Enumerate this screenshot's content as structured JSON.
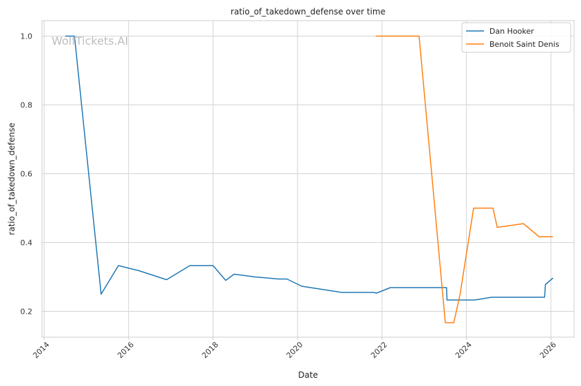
{
  "chart_data": {
    "type": "line",
    "title": "ratio_of_takedown_defense over time",
    "xlabel": "Date",
    "ylabel": "ratio_of_takedown_defense",
    "watermark": "WolfTickets.AI",
    "xlim": [
      2013.95,
      2026.55
    ],
    "ylim": [
      0.125,
      1.045
    ],
    "x_ticks": [
      2014,
      2016,
      2018,
      2020,
      2022,
      2024,
      2026
    ],
    "x_tick_labels": [
      "2014",
      "2016",
      "2018",
      "2020",
      "2022",
      "2024",
      "2026"
    ],
    "y_ticks": [
      0.2,
      0.4,
      0.6,
      0.8,
      1.0
    ],
    "y_tick_labels": [
      "0.2",
      "0.4",
      "0.6",
      "0.8",
      "1.0"
    ],
    "grid": true,
    "legend_position": "top-right",
    "series": [
      {
        "name": "Dan Hooker",
        "color": "#1f77b4",
        "x": [
          2014.5,
          2014.72,
          2015.35,
          2015.76,
          2016.25,
          2016.9,
          2017.45,
          2018.0,
          2018.3,
          2018.5,
          2019.0,
          2019.55,
          2019.75,
          2020.1,
          2021.05,
          2021.8,
          2021.87,
          2022.2,
          2023.53,
          2023.54,
          2023.85,
          2024.2,
          2024.6,
          2025.0,
          2025.3,
          2025.85,
          2025.87,
          2026.05
        ],
        "y": [
          1.0,
          1.0,
          0.25,
          0.333,
          0.318,
          0.292,
          0.333,
          0.333,
          0.29,
          0.308,
          0.3,
          0.294,
          0.294,
          0.273,
          0.255,
          0.255,
          0.253,
          0.269,
          0.269,
          0.233,
          0.233,
          0.233,
          0.241,
          0.241,
          0.241,
          0.241,
          0.278,
          0.297
        ]
      },
      {
        "name": "Benoit Saint Denis",
        "color": "#ff7f0e",
        "x": [
          2021.85,
          2022.4,
          2022.88,
          2023.5,
          2023.7,
          2023.85,
          2024.17,
          2024.4,
          2024.63,
          2024.73,
          2025.35,
          2025.72,
          2026.05
        ],
        "y": [
          1.0,
          1.0,
          1.0,
          0.167,
          0.167,
          0.25,
          0.5,
          0.5,
          0.5,
          0.444,
          0.455,
          0.417,
          0.417
        ]
      }
    ]
  }
}
